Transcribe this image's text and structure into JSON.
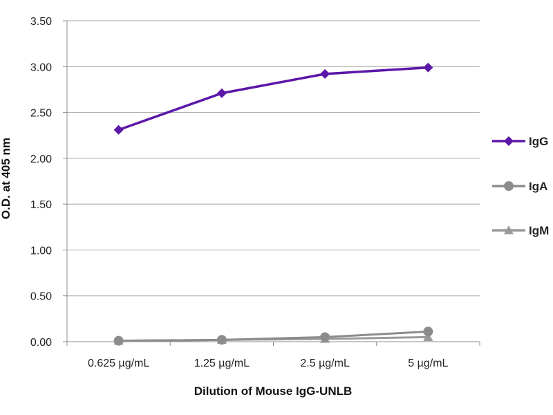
{
  "chart_data": {
    "type": "line",
    "title": "",
    "xlabel": "Dilution of Mouse IgG-UNLB",
    "ylabel": "O.D. at 405 nm",
    "categories": [
      "0.625 µg/mL",
      "1.25 µg/mL",
      "2.5 µg/mL",
      "5 µg/mL"
    ],
    "ylim": [
      0,
      3.5
    ],
    "yticks": [
      "0.00",
      "0.50",
      "1.00",
      "1.50",
      "2.00",
      "2.50",
      "3.00",
      "3.50"
    ],
    "grid": true,
    "legend_position": "right",
    "series": [
      {
        "name": "IgG",
        "values": [
          2.31,
          2.71,
          2.92,
          2.99
        ],
        "color": "#5B17A8",
        "marker": "diamond"
      },
      {
        "name": "IgA",
        "values": [
          0.01,
          0.02,
          0.05,
          0.11
        ],
        "color": "#8C8C8C",
        "marker": "circle"
      },
      {
        "name": "IgM",
        "values": [
          0.01,
          0.02,
          0.03,
          0.05
        ],
        "color": "#9A9A9A",
        "marker": "triangle"
      }
    ]
  }
}
